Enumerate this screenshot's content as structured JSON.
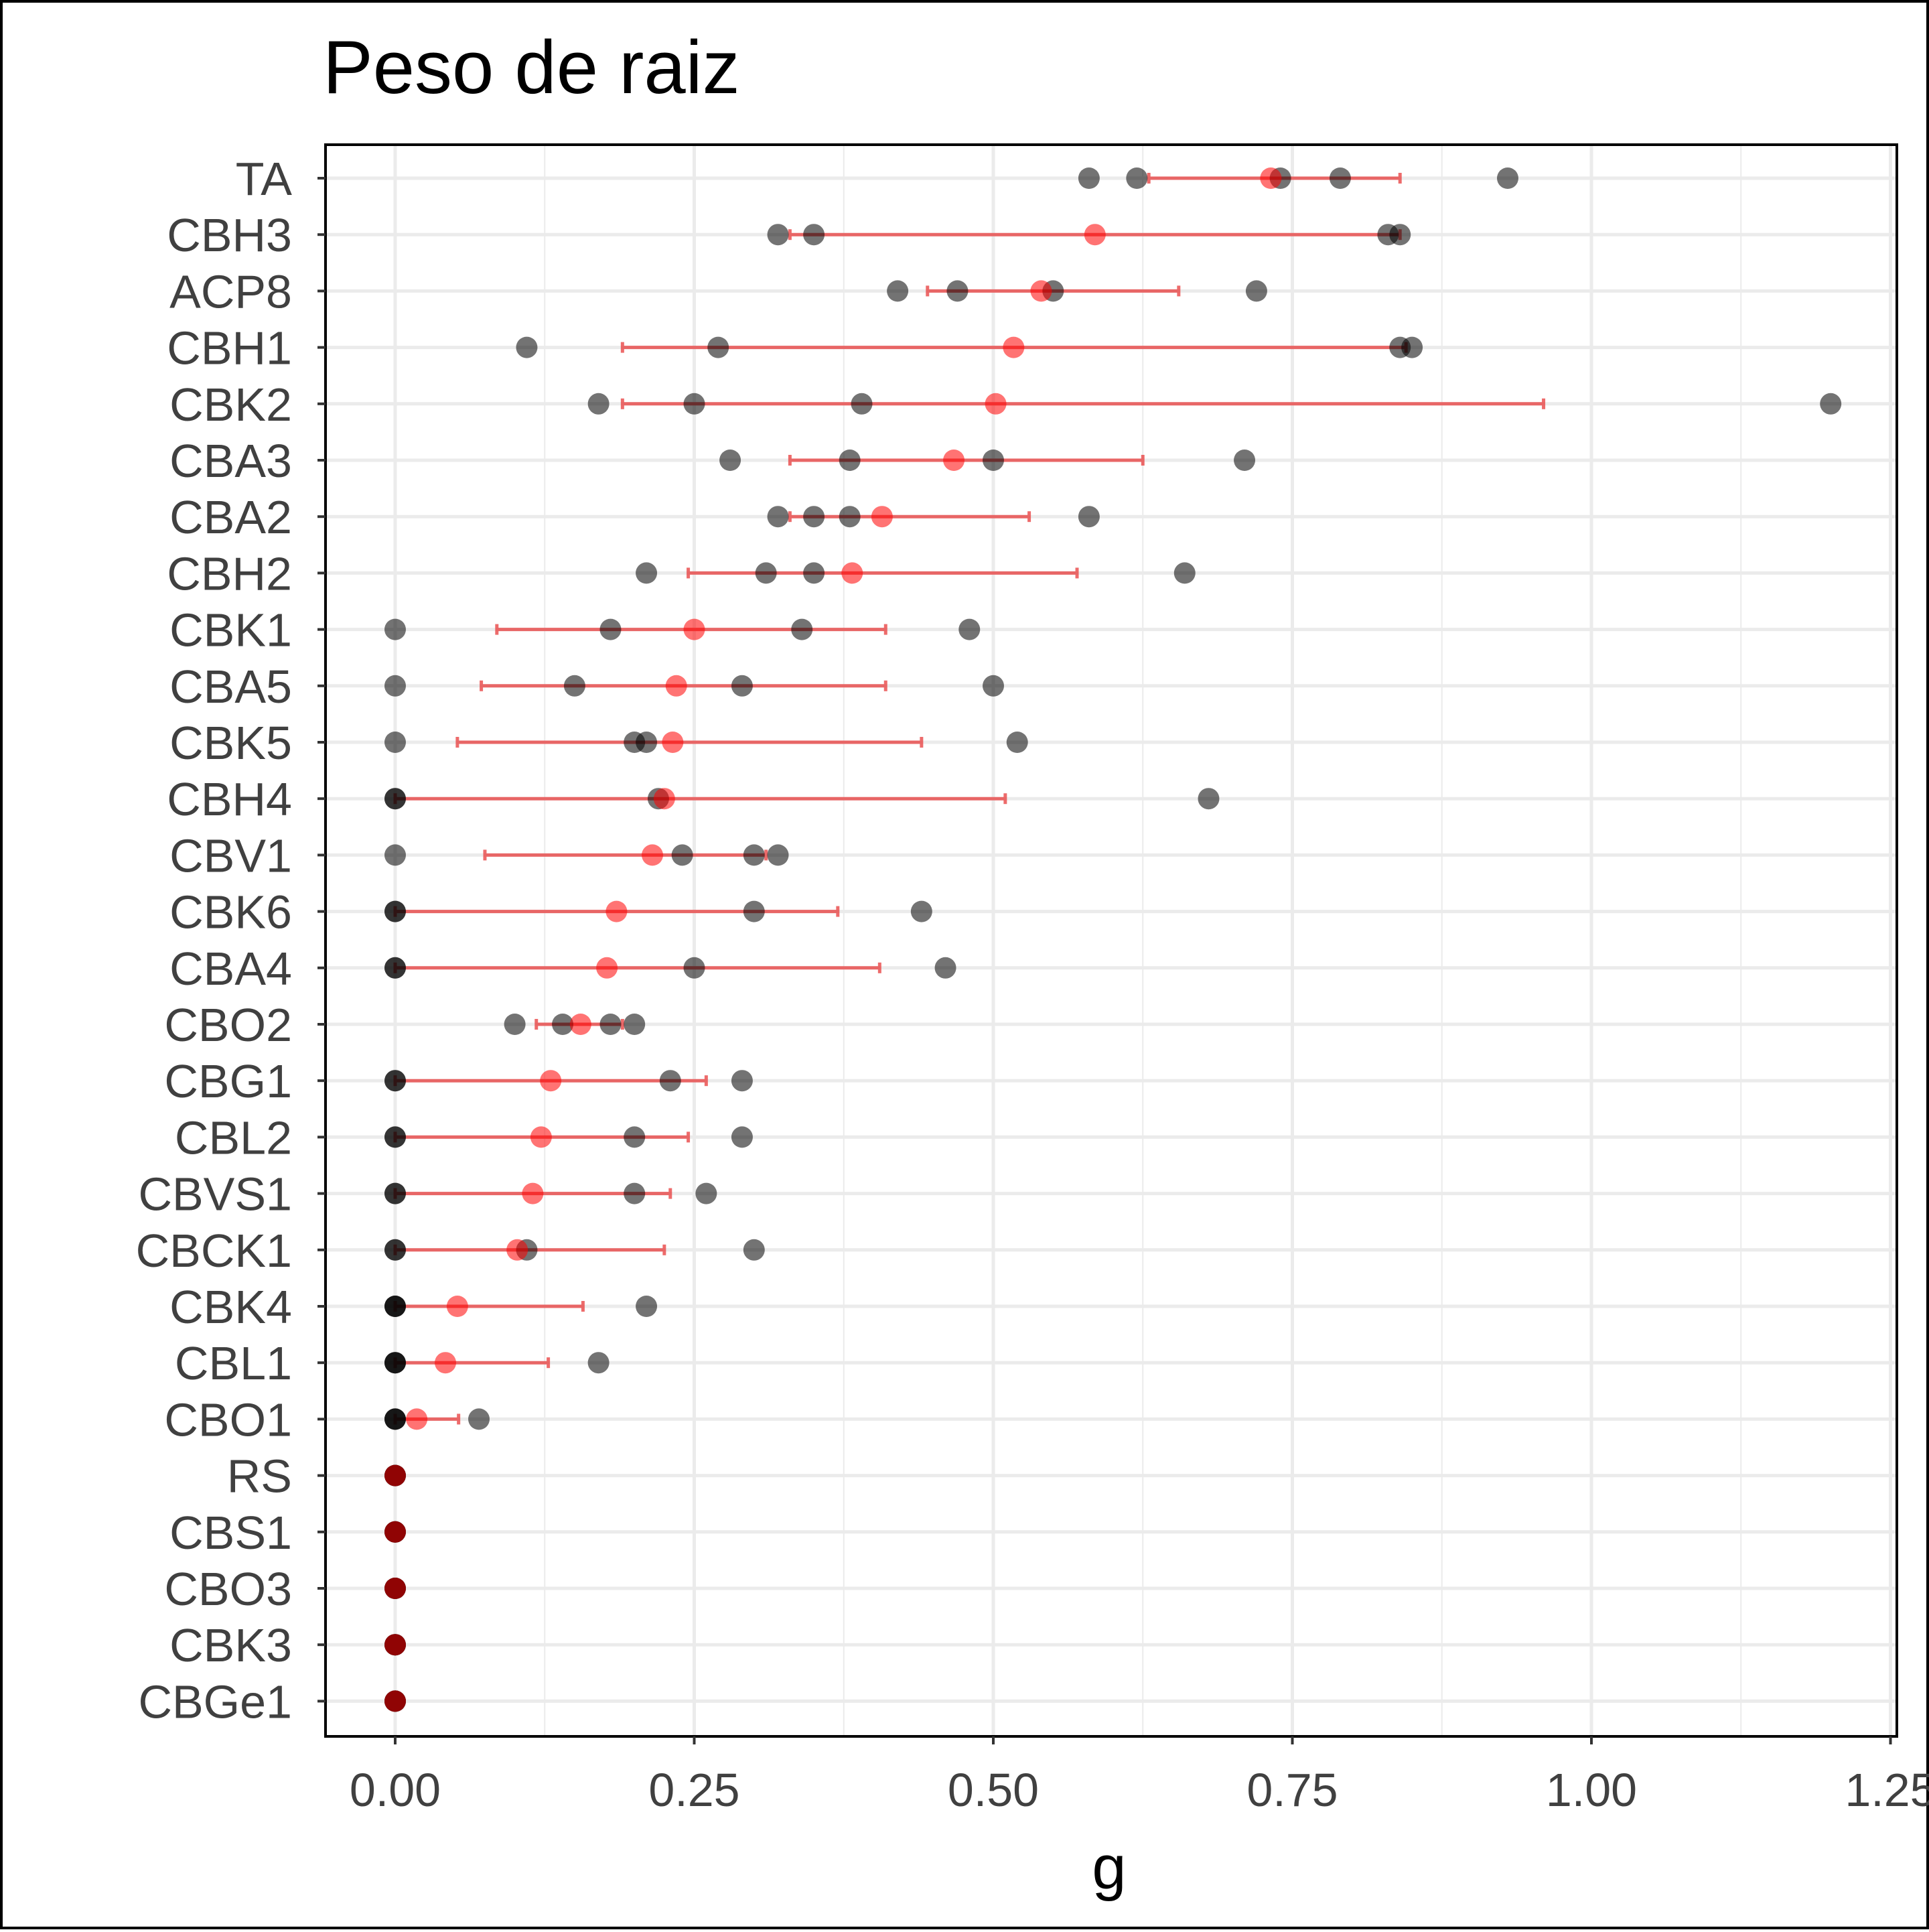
{
  "chart_data": {
    "type": "scatter",
    "title": "Peso de raiz",
    "xlabel": "g",
    "ylabel": "",
    "xlim": [
      -0.12,
      1.25
    ],
    "xticks": [
      0.0,
      0.25,
      0.5,
      0.75,
      1.0,
      1.25
    ],
    "xtick_labels": [
      "0.00",
      "0.25",
      "0.50",
      "0.75",
      "1.00",
      "1.25"
    ],
    "grid": true,
    "colors": {
      "points": "#000000",
      "mean": "#ff0000",
      "error_bar": "#e83a3a",
      "grid": "#ebebeb"
    },
    "series_note": "",
    "categories": [
      {
        "label": "TA",
        "points": [
          0.58,
          0.62,
          0.74,
          0.79,
          0.93
        ],
        "mean": 0.732,
        "lo": 0.63,
        "hi": 0.84
      },
      {
        "label": "CBH3",
        "points": [
          0.32,
          0.35,
          0.83,
          0.84
        ],
        "mean": 0.585,
        "lo": 0.33,
        "hi": 0.84
      },
      {
        "label": "ACP8",
        "points": [
          0.42,
          0.47,
          0.55,
          0.72
        ],
        "mean": 0.54,
        "lo": 0.445,
        "hi": 0.655
      },
      {
        "label": "CBH1",
        "points": [
          0.11,
          0.27,
          0.84,
          0.85
        ],
        "mean": 0.517,
        "lo": 0.19,
        "hi": 0.845
      },
      {
        "label": "CBK2",
        "points": [
          0.17,
          0.25,
          0.39,
          1.2
        ],
        "mean": 0.502,
        "lo": 0.19,
        "hi": 0.96
      },
      {
        "label": "CBA3",
        "points": [
          0.28,
          0.38,
          0.5,
          0.71
        ],
        "mean": 0.467,
        "lo": 0.33,
        "hi": 0.625
      },
      {
        "label": "CBA2",
        "points": [
          0.32,
          0.35,
          0.38,
          0.58
        ],
        "mean": 0.407,
        "lo": 0.33,
        "hi": 0.53
      },
      {
        "label": "CBH2",
        "points": [
          0.21,
          0.31,
          0.35,
          0.66
        ],
        "mean": 0.382,
        "lo": 0.245,
        "hi": 0.57
      },
      {
        "label": "CBK1",
        "points": [
          0.0,
          0.18,
          0.34,
          0.48
        ],
        "mean": 0.25,
        "lo": 0.085,
        "hi": 0.41
      },
      {
        "label": "CBA5",
        "points": [
          0.0,
          0.15,
          0.29,
          0.5
        ],
        "mean": 0.235,
        "lo": 0.072,
        "hi": 0.41
      },
      {
        "label": "CBK5",
        "points": [
          0.0,
          0.2,
          0.21,
          0.52
        ],
        "mean": 0.232,
        "lo": 0.052,
        "hi": 0.44
      },
      {
        "label": "CBH4",
        "points": [
          0.0,
          0.0,
          0.22,
          0.68
        ],
        "mean": 0.225,
        "lo": 0.0,
        "hi": 0.51
      },
      {
        "label": "CBV1",
        "points": [
          0.0,
          0.24,
          0.3,
          0.32
        ],
        "mean": 0.215,
        "lo": 0.075,
        "hi": 0.31
      },
      {
        "label": "CBK6",
        "points": [
          0.0,
          0.0,
          0.3,
          0.44
        ],
        "mean": 0.185,
        "lo": 0.0,
        "hi": 0.37
      },
      {
        "label": "CBA4",
        "points": [
          0.0,
          0.0,
          0.25,
          0.46
        ],
        "mean": 0.177,
        "lo": 0.0,
        "hi": 0.405
      },
      {
        "label": "CBO2",
        "points": [
          0.1,
          0.14,
          0.18,
          0.2
        ],
        "mean": 0.155,
        "lo": 0.118,
        "hi": 0.19
      },
      {
        "label": "CBG1",
        "points": [
          0.0,
          0.0,
          0.23,
          0.29
        ],
        "mean": 0.13,
        "lo": 0.0,
        "hi": 0.26
      },
      {
        "label": "CBL2",
        "points": [
          0.0,
          0.0,
          0.2,
          0.29
        ],
        "mean": 0.122,
        "lo": 0.0,
        "hi": 0.245
      },
      {
        "label": "CBVS1",
        "points": [
          0.0,
          0.0,
          0.2,
          0.26
        ],
        "mean": 0.115,
        "lo": 0.0,
        "hi": 0.23
      },
      {
        "label": "CBCK1",
        "points": [
          0.0,
          0.0,
          0.11,
          0.3
        ],
        "mean": 0.102,
        "lo": 0.0,
        "hi": 0.225
      },
      {
        "label": "CBK4",
        "points": [
          0.0,
          0.0,
          0.0,
          0.21
        ],
        "mean": 0.052,
        "lo": 0.0,
        "hi": 0.157
      },
      {
        "label": "CBL1",
        "points": [
          0.0,
          0.0,
          0.0,
          0.17
        ],
        "mean": 0.042,
        "lo": 0.0,
        "hi": 0.128
      },
      {
        "label": "CBO1",
        "points": [
          0.0,
          0.0,
          0.0,
          0.07
        ],
        "mean": 0.018,
        "lo": 0.0,
        "hi": 0.053
      },
      {
        "label": "RS",
        "points": [
          0.0,
          0.0,
          0.0,
          0.0
        ],
        "mean": 0.0,
        "lo": 0.0,
        "hi": 0.0
      },
      {
        "label": "CBS1",
        "points": [
          0.0,
          0.0,
          0.0,
          0.0
        ],
        "mean": 0.0,
        "lo": 0.0,
        "hi": 0.0
      },
      {
        "label": "CBO3",
        "points": [
          0.0,
          0.0,
          0.0,
          0.0
        ],
        "mean": 0.0,
        "lo": 0.0,
        "hi": 0.0
      },
      {
        "label": "CBK3",
        "points": [
          0.0,
          0.0,
          0.0,
          0.0
        ],
        "mean": 0.0,
        "lo": 0.0,
        "hi": 0.0
      },
      {
        "label": "CBGe1",
        "points": [
          0.0,
          0.0,
          0.0,
          0.0
        ],
        "mean": 0.0,
        "lo": 0.0,
        "hi": 0.0
      }
    ]
  }
}
